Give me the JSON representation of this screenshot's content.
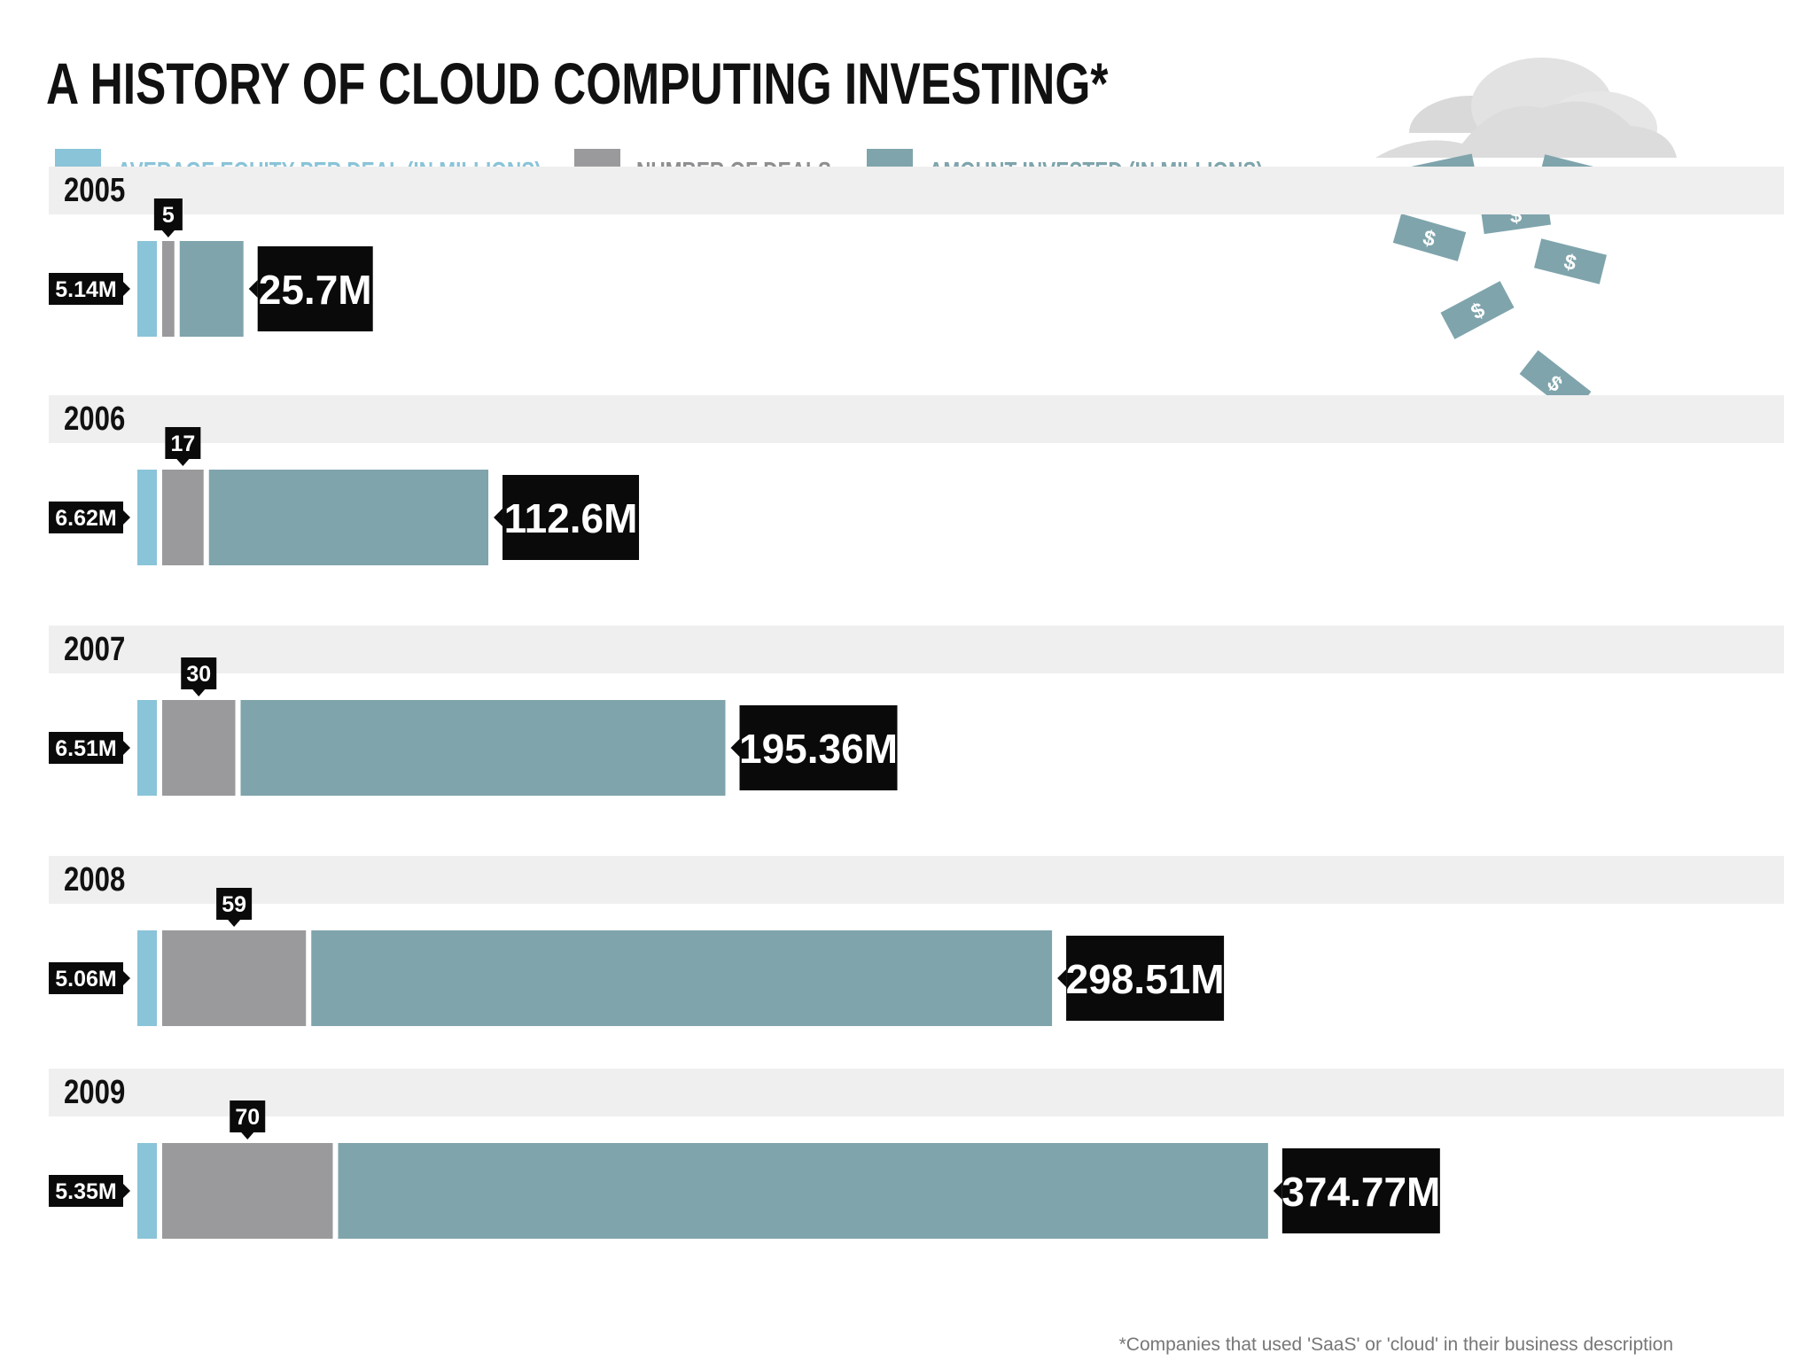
{
  "title": "A HISTORY OF CLOUD COMPUTING INVESTING*",
  "footnote": "*Companies that used 'SaaS' or 'cloud' in their business description",
  "colors": {
    "avg_equity": "#8ac4d8",
    "deals": "#9a9a9c",
    "invested": "#7fa4ac",
    "band": "#efefef",
    "label_bg": "#0a0a0a",
    "legend_text_avg": "#8ac4d8",
    "legend_text_deals": "#8f8f91",
    "legend_text_invested": "#7fa4ac"
  },
  "legend": [
    {
      "label": "AVERAGE EQUITY PER DEAL (IN MILLIONS)",
      "series": "avg_equity"
    },
    {
      "label": "NUMBER OF DEALS",
      "series": "deals"
    },
    {
      "label": "AMOUNT INVESTED (IN MILLIONS)",
      "series": "invested"
    }
  ],
  "decoration": {
    "dollar_symbol": "$",
    "icons": [
      "cloud-icon",
      "dollar-bill-icon"
    ]
  },
  "chart_data": {
    "type": "bar",
    "orientation": "horizontal-stacked",
    "title": "A HISTORY OF CLOUD COMPUTING INVESTING*",
    "categories": [
      "2005",
      "2006",
      "2007",
      "2008",
      "2009"
    ],
    "series": [
      {
        "name": "AVERAGE EQUITY PER DEAL (IN MILLIONS)",
        "key": "avg_equity",
        "values": [
          5.14,
          6.62,
          6.51,
          5.06,
          5.35
        ],
        "labels": [
          "5.14M",
          "6.62M",
          "6.51M",
          "5.06M",
          "5.35M"
        ]
      },
      {
        "name": "NUMBER OF DEALS",
        "key": "deals",
        "values": [
          5,
          17,
          30,
          59,
          70
        ],
        "labels": [
          "5",
          "17",
          "30",
          "59",
          "70"
        ]
      },
      {
        "name": "AMOUNT INVESTED (IN MILLIONS)",
        "key": "invested",
        "values": [
          25.7,
          112.6,
          195.36,
          298.51,
          374.77
        ],
        "labels": [
          "25.7M",
          "112.6M",
          "195.36M",
          "298.51M",
          "374.77M"
        ]
      }
    ],
    "legend_position": "top",
    "grid": false
  }
}
